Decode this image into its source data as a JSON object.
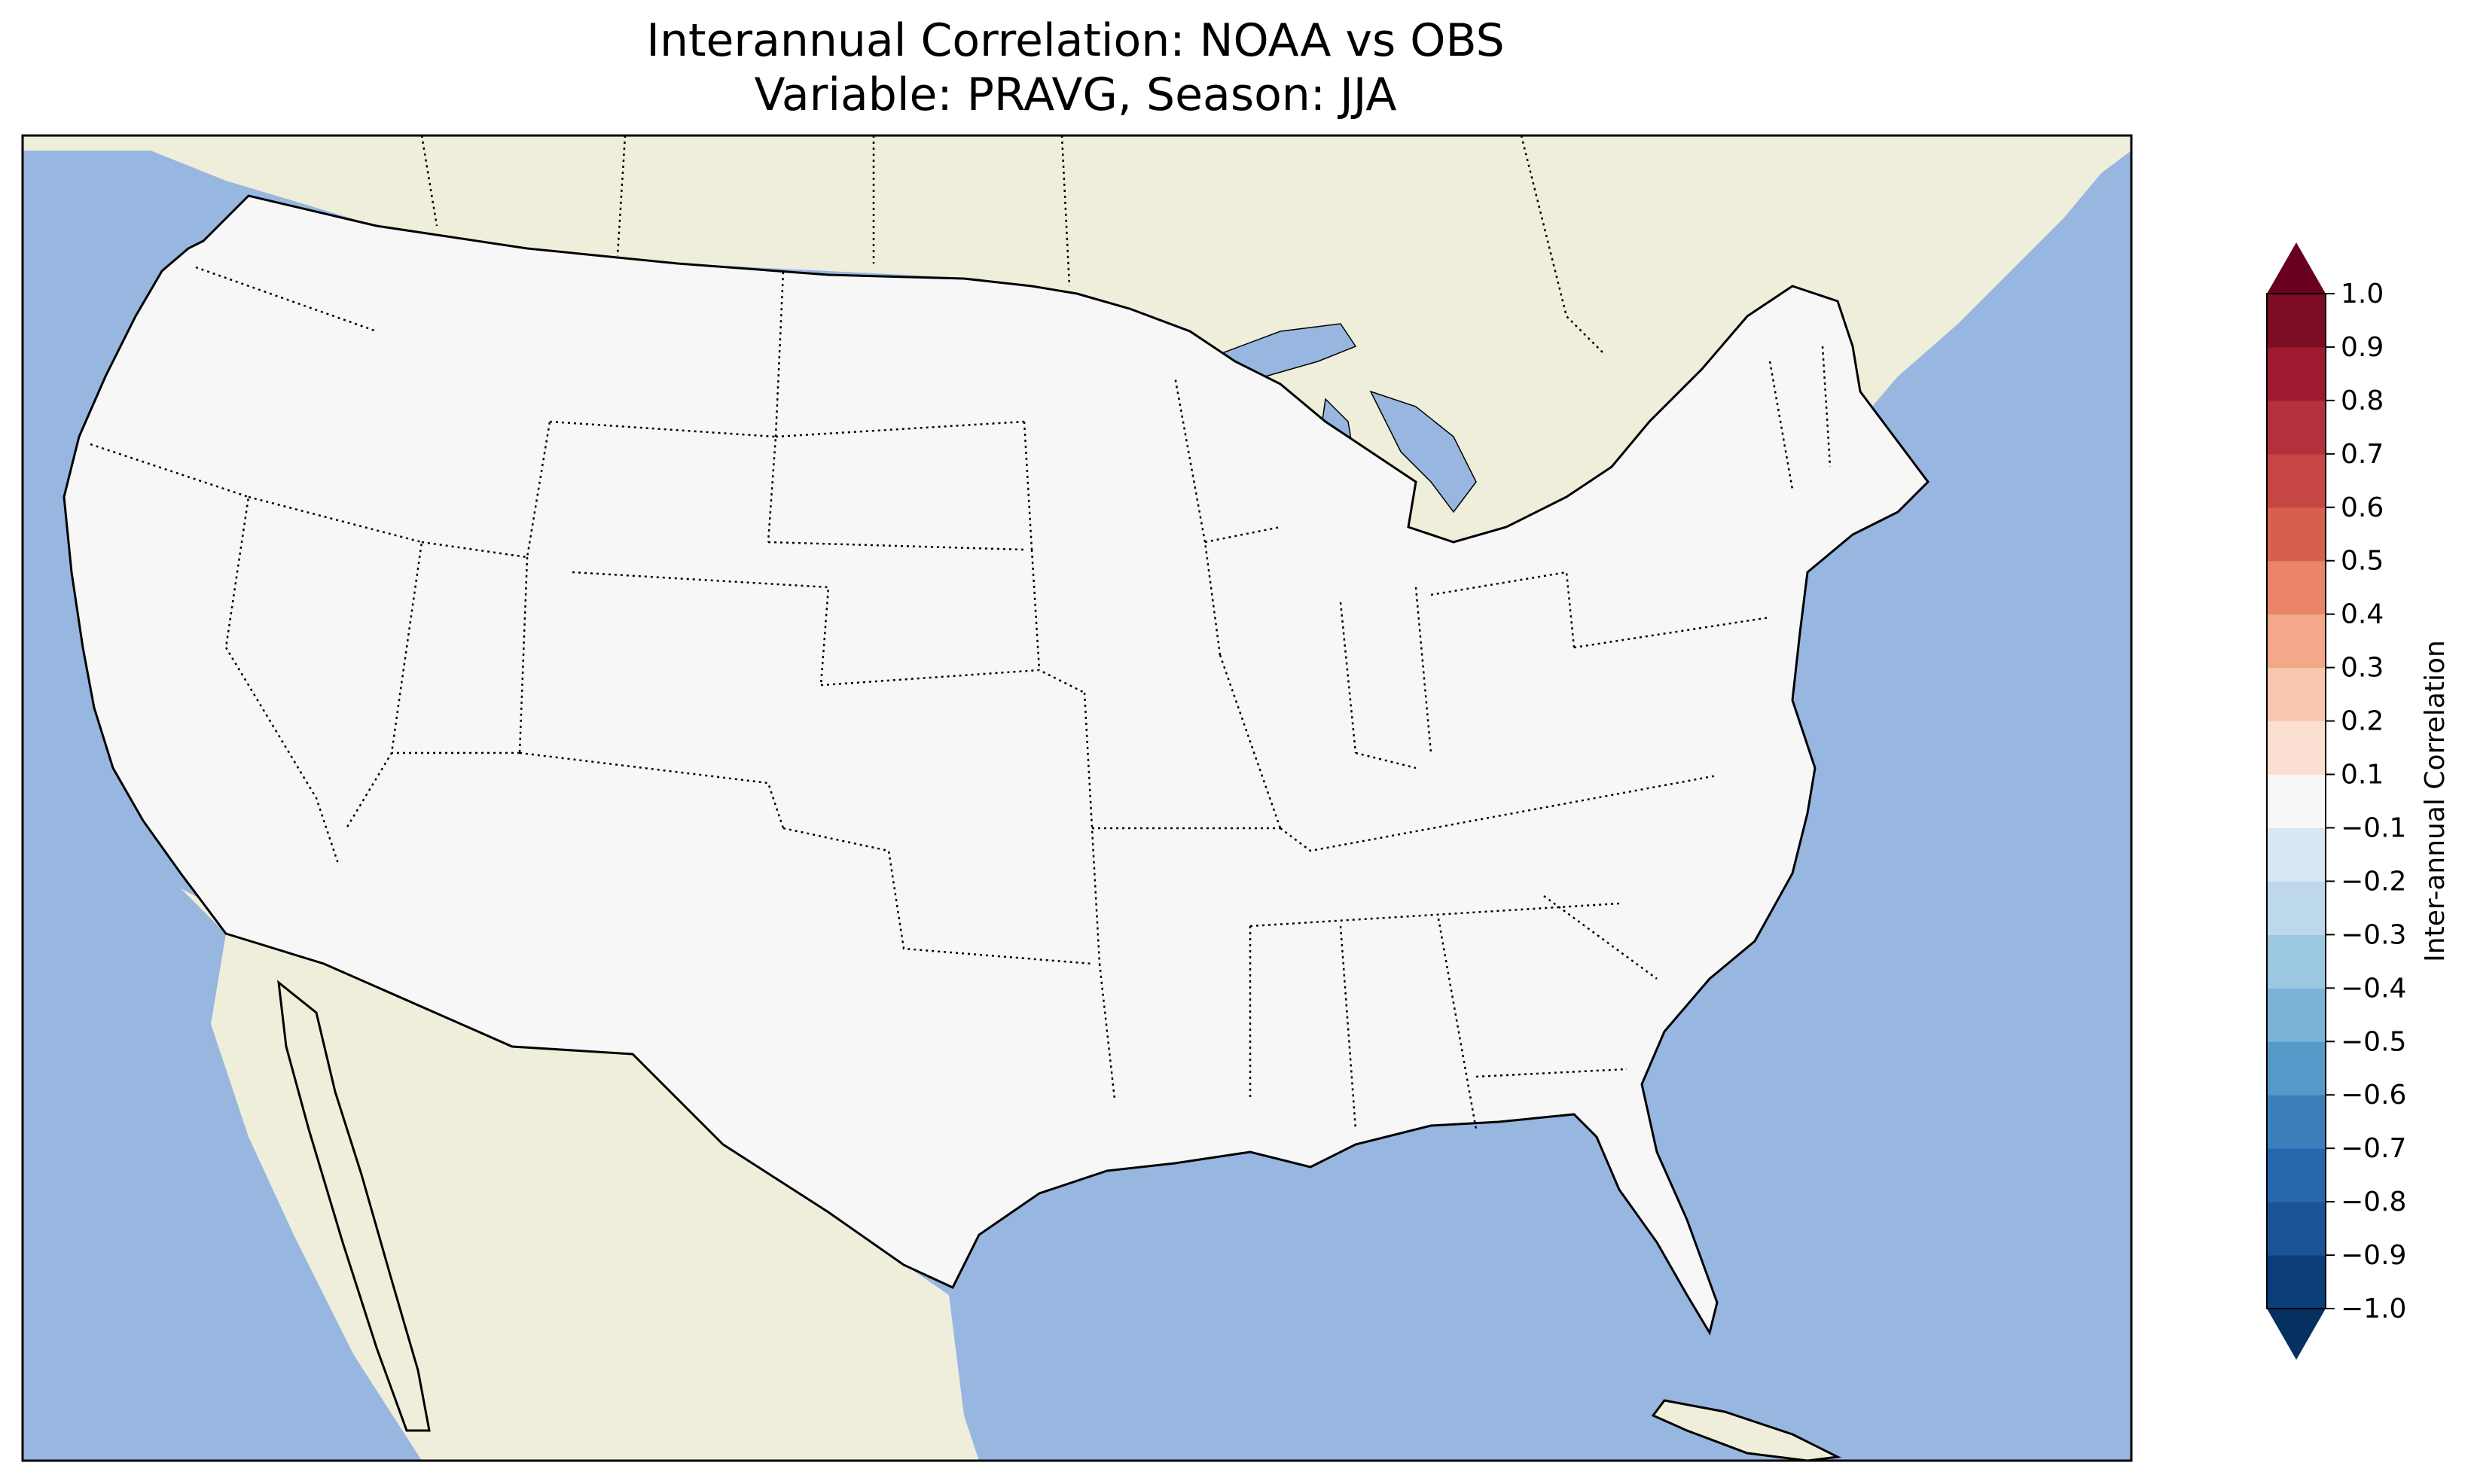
{
  "title": {
    "line1": "Interannual Correlation: NOAA vs OBS",
    "line2": "Variable: PRAVG, Season: JJA"
  },
  "colorbar": {
    "label": "Inter-annual Correlation",
    "ticks": [
      "1.0",
      "0.9",
      "0.8",
      "0.7",
      "0.6",
      "0.5",
      "0.4",
      "0.3",
      "0.2",
      "0.1",
      "−0.1",
      "−0.2",
      "−0.3",
      "−0.4",
      "−0.5",
      "−0.6",
      "−0.7",
      "−0.8",
      "−0.9",
      "−1.0"
    ],
    "levels": [
      -1.0,
      -0.9,
      -0.8,
      -0.7,
      -0.6,
      -0.5,
      -0.4,
      -0.3,
      -0.2,
      -0.1,
      0.1,
      0.2,
      0.3,
      0.4,
      0.5,
      0.6,
      0.7,
      0.8,
      0.9,
      1.0
    ],
    "colors_low_to_high": [
      "#0b3d7a",
      "#1a5496",
      "#2767ad",
      "#3a7fba",
      "#5599c8",
      "#7bb3d8",
      "#9dc8e1",
      "#bdd8ea",
      "#d8e7f1",
      "#f7f7f7",
      "#fbe0d1",
      "#f9c7b0",
      "#f3a889",
      "#e98468",
      "#d6604d",
      "#c54642",
      "#b3303c",
      "#9e1a31",
      "#7c0d24"
    ],
    "extend_max_color": "#6a0020",
    "extend_min_color": "#06305f"
  },
  "map": {
    "ocean_color": "#97b6e0",
    "land_color": "#efeedb",
    "domain": "Contiguous United States",
    "features": [
      "coastlines",
      "state borders",
      "country borders",
      "great lakes"
    ]
  }
}
